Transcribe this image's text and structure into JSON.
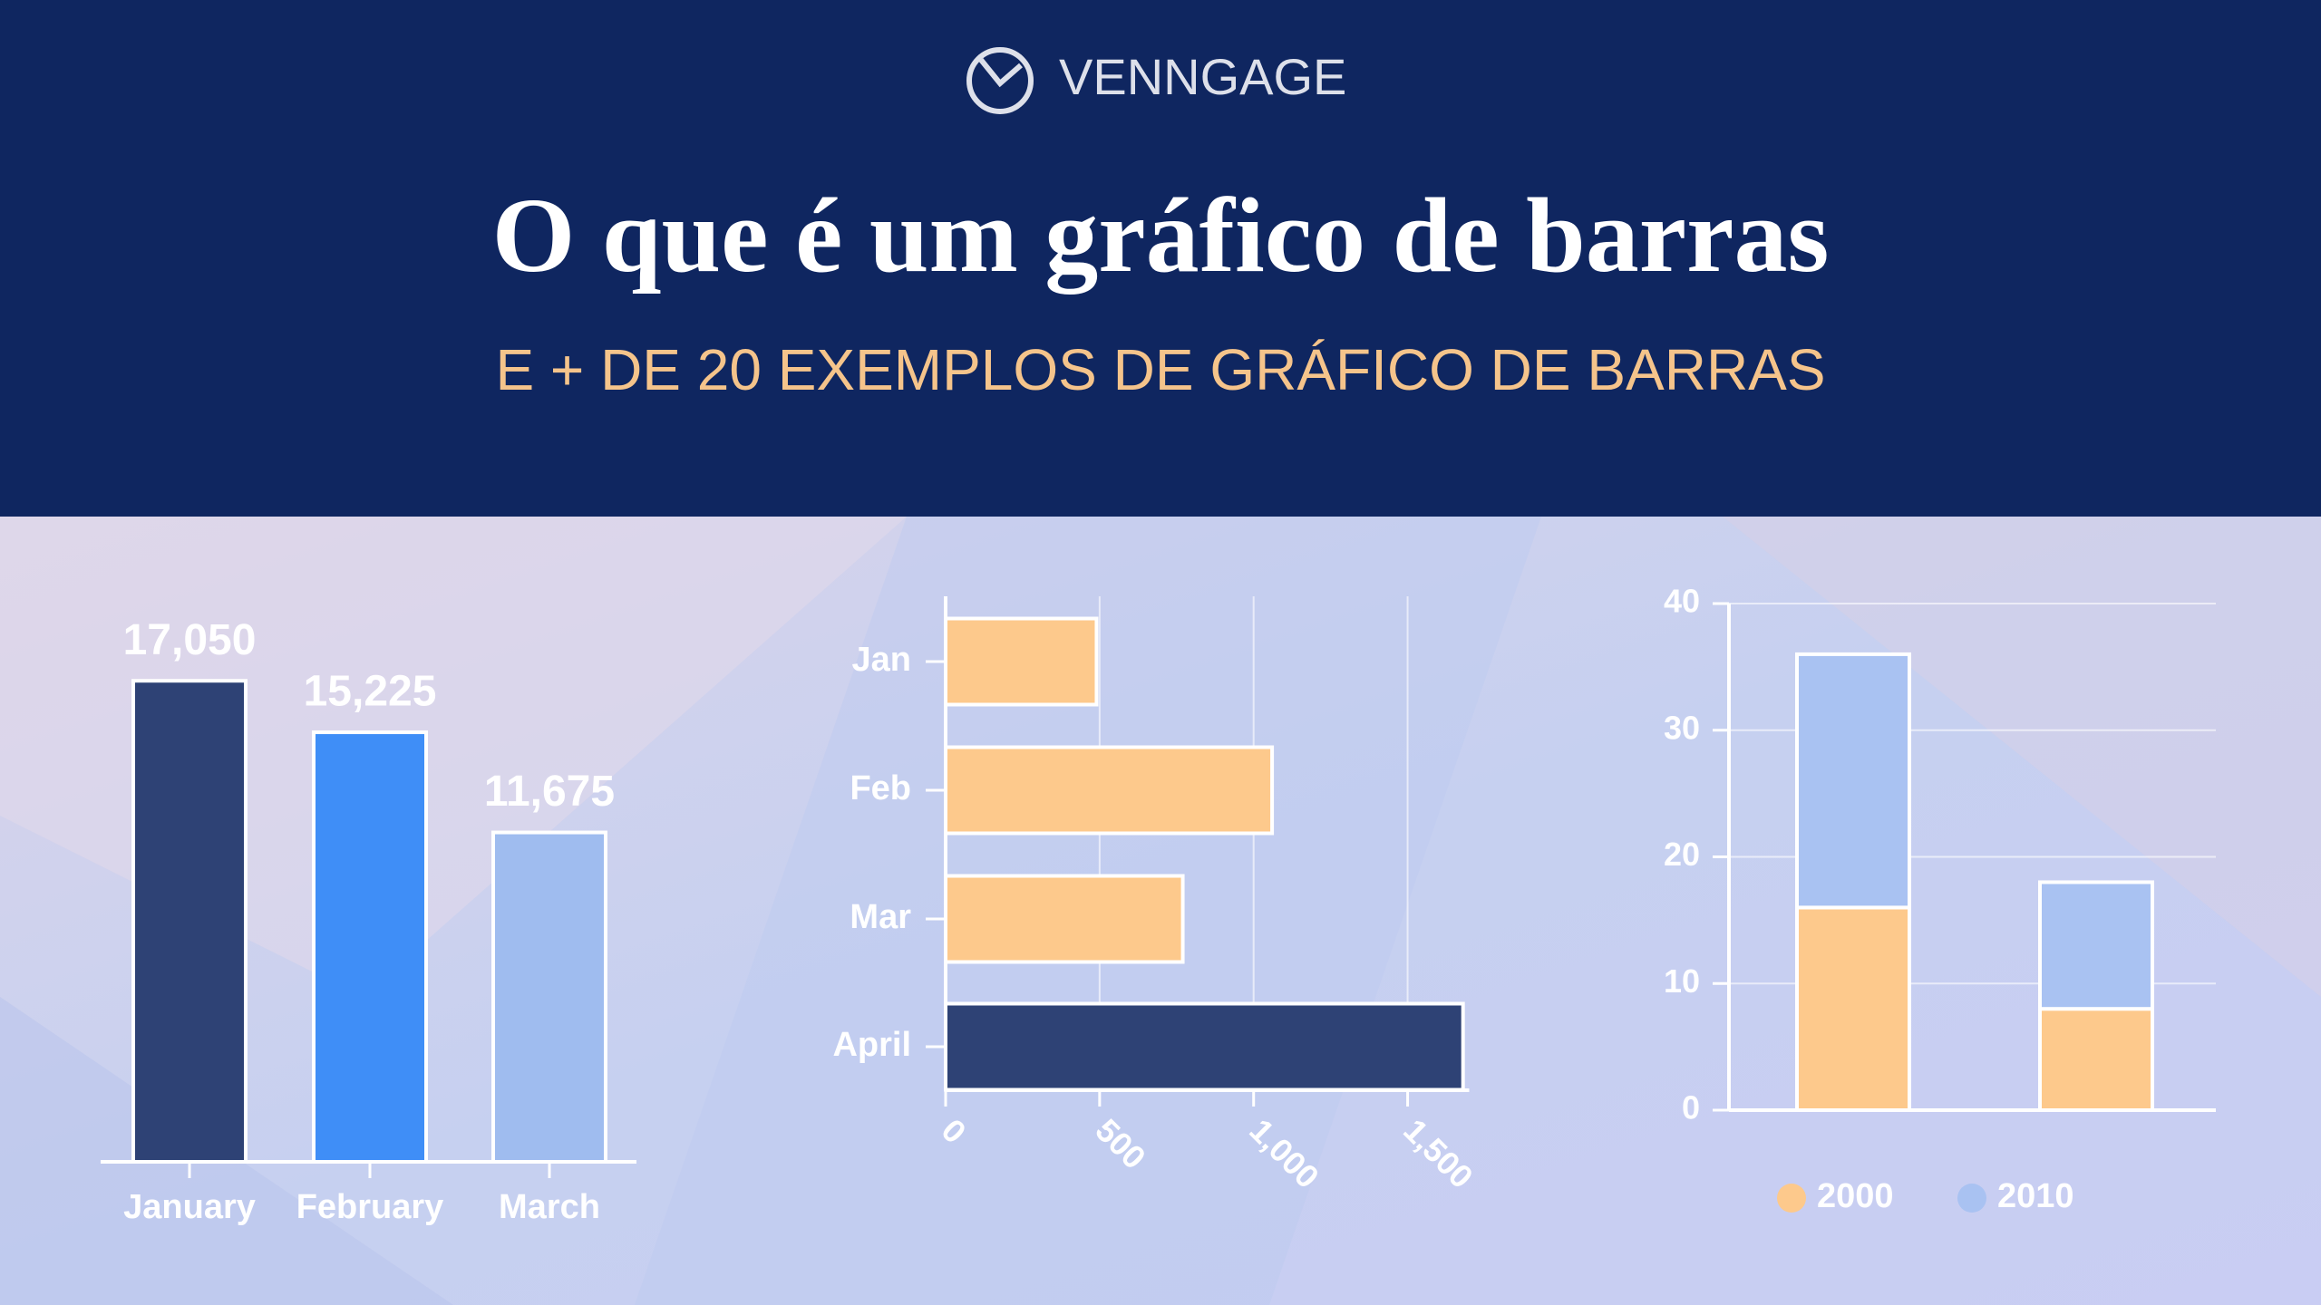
{
  "header": {
    "logo": "VENNGAGE",
    "title": "O que é um gráfico de barras",
    "subtitle": "E + DE 20 EXEMPLOS DE GRÁFICO DE BARRAS"
  },
  "chart_data": [
    {
      "type": "bar",
      "categories": [
        "January",
        "February",
        "March"
      ],
      "values": [
        17050,
        15225,
        11675
      ],
      "value_labels": [
        "17,050",
        "15,225",
        "11,675"
      ],
      "colors": [
        "#2e4275",
        "#3f8ef7",
        "#9fbcef"
      ]
    },
    {
      "type": "barh",
      "categories": [
        "Jan",
        "Feb",
        "Mar",
        "April"
      ],
      "values": [
        490,
        1060,
        770,
        1680
      ],
      "colors": [
        "#fdc98c",
        "#fdc98c",
        "#fdc98c",
        "#2e4275"
      ],
      "xlim": [
        0,
        1700
      ],
      "xticks": [
        0,
        500,
        {
          "value": 1000,
          "label": "1,000"
        },
        {
          "value": 1500,
          "label": "1,500"
        }
      ],
      "grid": true
    },
    {
      "type": "stacked",
      "categories": [
        null,
        null
      ],
      "series": [
        {
          "name": "2000",
          "color": "#fdc98c",
          "values": [
            16,
            8
          ]
        },
        {
          "name": "2010",
          "color": "#a9c2f2",
          "values": [
            20,
            10
          ]
        }
      ],
      "ylim": [
        0,
        40
      ],
      "yticks": [
        0,
        10,
        20,
        30,
        40
      ],
      "grid": true,
      "legend": "bottom"
    }
  ]
}
